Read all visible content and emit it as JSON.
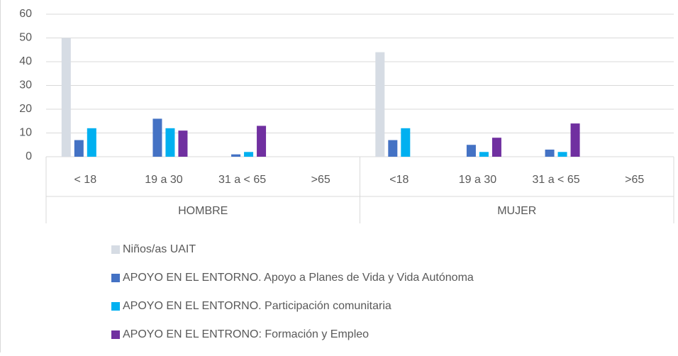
{
  "chart_data": {
    "type": "bar",
    "categories": [
      "< 18",
      "19 a 30",
      "31 a < 65",
      ">65",
      "<18",
      "19 a 30",
      "31 a < 65",
      ">65"
    ],
    "groups": [
      {
        "name": "HOMBRE",
        "size": 4
      },
      {
        "name": "MUJER",
        "size": 4
      }
    ],
    "series": [
      {
        "name": "Niños/as UAIT",
        "color": "#d6dce4",
        "values": [
          50,
          null,
          null,
          null,
          44,
          null,
          null,
          null
        ]
      },
      {
        "name": "APOYO EN EL ENTORNO. Apoyo a Planes de Vida y Vida Autónoma",
        "color": "#4472c4",
        "values": [
          7,
          16,
          1,
          null,
          7,
          5,
          3,
          null
        ]
      },
      {
        "name": "APOYO EN EL ENTORNO. Participación comunitaria",
        "color": "#00b0f0",
        "values": [
          12,
          12,
          2,
          null,
          12,
          2,
          2,
          null
        ]
      },
      {
        "name": "APOYO EN EL ENTRONO: Formación y Empleo",
        "color": "#7030a0",
        "values": [
          null,
          11,
          13,
          null,
          null,
          8,
          14,
          null
        ]
      }
    ],
    "ylim": [
      0,
      60
    ],
    "yticks": [
      0,
      10,
      20,
      30,
      40,
      50,
      60
    ],
    "grid": true,
    "legend": "bottom"
  }
}
